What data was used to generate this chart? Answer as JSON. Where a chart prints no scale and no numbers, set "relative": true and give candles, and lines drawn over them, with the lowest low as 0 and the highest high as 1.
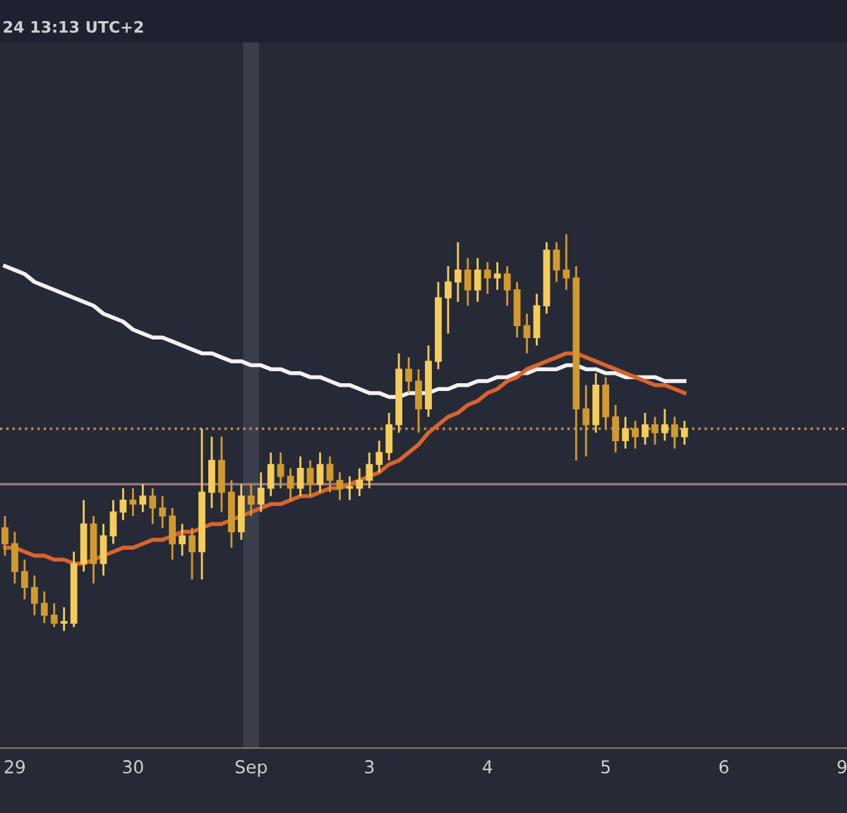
{
  "chart_data": {
    "type": "candlestick",
    "relative": true,
    "annotations": [
      "24 13:13 UTC+2"
    ],
    "categories": [
      null,
      "29",
      null,
      null,
      null,
      null,
      null,
      null,
      null,
      null,
      null,
      null,
      null,
      "30",
      null,
      null,
      null,
      null,
      null,
      null,
      null,
      null,
      null,
      null,
      null,
      "Sep",
      null,
      null,
      null,
      null,
      null,
      null,
      null,
      null,
      null,
      null,
      null,
      "3",
      null,
      null,
      null,
      null,
      null,
      null,
      null,
      null,
      null,
      null,
      null,
      "4",
      null,
      null,
      null,
      null,
      null,
      null,
      null,
      null,
      null,
      null,
      null,
      "5",
      null,
      null,
      null,
      null,
      null,
      null,
      null,
      null,
      null,
      null,
      null,
      "6",
      null,
      null,
      null,
      null,
      null,
      null,
      null,
      null,
      null,
      null,
      null,
      "9"
    ],
    "colors": [
      "#d29a2e",
      "#d29a2e",
      "#d29a2e",
      "#d29a2e",
      "#d29a2e",
      "#d29a2e",
      "#f5cc5a",
      "#f5cc5a",
      "#f5cc5a",
      "#d29a2e",
      "#f5cc5a",
      "#f5cc5a",
      "#f5cc5a",
      "#d29a2e",
      "#f5cc5a",
      "#d29a2e",
      "#d29a2e",
      "#d29a2e",
      "#f5cc5a",
      "#d29a2e",
      "#f5cc5a",
      "#f5cc5a",
      "#d29a2e",
      "#d29a2e",
      "#f5cc5a",
      "#d29a2e",
      "#f5cc5a",
      "#f5cc5a",
      "#d29a2e",
      "#d29a2e",
      "#f5cc5a",
      "#d29a2e",
      "#f5cc5a",
      "#d29a2e",
      "#d29a2e",
      "#f5cc5a",
      "#f5cc5a",
      "#f5cc5a",
      "#f5cc5a",
      "#f5cc5a",
      "#f5cc5a",
      "#d29a2e",
      "#d29a2e",
      "#f5cc5a",
      "#f5cc5a",
      "#f5cc5a",
      "#f5cc5a",
      "#d29a2e",
      "#f5cc5a",
      "#d29a2e",
      "#f5cc5a",
      "#d29a2e",
      "#d29a2e",
      "#d29a2e",
      "#f5cc5a",
      "#f5cc5a",
      "#d29a2e",
      "#d29a2e",
      "#d29a2e",
      "#d29a2e",
      "#f5cc5a",
      "#d29a2e",
      "#d29a2e",
      "#f5cc5a",
      "#d29a2e",
      "#f5cc5a",
      "#d29a2e",
      "#f5cc5a",
      "#d29a2e",
      "#f5cc5a",
      null,
      null,
      null,
      null,
      null,
      null,
      null,
      null,
      null,
      null,
      null,
      null,
      null,
      null,
      null,
      null
    ],
    "ohlc": [
      [
        0.26,
        0.29,
        0.19,
        0.22
      ],
      [
        0.22,
        0.25,
        0.12,
        0.15
      ],
      [
        0.15,
        0.18,
        0.08,
        0.11
      ],
      [
        0.11,
        0.14,
        0.04,
        0.07
      ],
      [
        0.07,
        0.1,
        0.02,
        0.04
      ],
      [
        0.04,
        0.07,
        0.01,
        0.02
      ],
      [
        0.02,
        0.06,
        0.0,
        0.02
      ],
      [
        0.02,
        0.2,
        0.01,
        0.17
      ],
      [
        0.17,
        0.33,
        0.15,
        0.27
      ],
      [
        0.27,
        0.29,
        0.12,
        0.17
      ],
      [
        0.17,
        0.27,
        0.14,
        0.24
      ],
      [
        0.24,
        0.33,
        0.22,
        0.3
      ],
      [
        0.3,
        0.36,
        0.28,
        0.33
      ],
      [
        0.33,
        0.36,
        0.29,
        0.32
      ],
      [
        0.32,
        0.37,
        0.3,
        0.34
      ],
      [
        0.34,
        0.36,
        0.27,
        0.31
      ],
      [
        0.31,
        0.34,
        0.26,
        0.29
      ],
      [
        0.29,
        0.31,
        0.18,
        0.22
      ],
      [
        0.22,
        0.27,
        0.19,
        0.24
      ],
      [
        0.24,
        0.26,
        0.13,
        0.2
      ],
      [
        0.2,
        0.51,
        0.13,
        0.35
      ],
      [
        0.35,
        0.49,
        0.31,
        0.43
      ],
      [
        0.43,
        0.49,
        0.3,
        0.35
      ],
      [
        0.35,
        0.38,
        0.21,
        0.25
      ],
      [
        0.25,
        0.37,
        0.23,
        0.34
      ],
      [
        0.34,
        0.37,
        0.29,
        0.32
      ],
      [
        0.32,
        0.4,
        0.3,
        0.36
      ],
      [
        0.36,
        0.45,
        0.34,
        0.42
      ],
      [
        0.42,
        0.45,
        0.36,
        0.39
      ],
      [
        0.39,
        0.41,
        0.33,
        0.36
      ],
      [
        0.36,
        0.44,
        0.34,
        0.41
      ],
      [
        0.41,
        0.43,
        0.34,
        0.37
      ],
      [
        0.37,
        0.45,
        0.35,
        0.42
      ],
      [
        0.42,
        0.44,
        0.35,
        0.38
      ],
      [
        0.38,
        0.4,
        0.33,
        0.36
      ],
      [
        0.36,
        0.39,
        0.33,
        0.36
      ],
      [
        0.36,
        0.41,
        0.34,
        0.38
      ],
      [
        0.38,
        0.45,
        0.36,
        0.42
      ],
      [
        0.42,
        0.48,
        0.4,
        0.45
      ],
      [
        0.45,
        0.55,
        0.43,
        0.52
      ],
      [
        0.52,
        0.7,
        0.5,
        0.66
      ],
      [
        0.66,
        0.69,
        0.6,
        0.63
      ],
      [
        0.63,
        0.66,
        0.5,
        0.56
      ],
      [
        0.56,
        0.72,
        0.54,
        0.68
      ],
      [
        0.68,
        0.88,
        0.66,
        0.84
      ],
      [
        0.84,
        0.92,
        0.75,
        0.88
      ],
      [
        0.88,
        0.98,
        0.83,
        0.91
      ],
      [
        0.91,
        0.94,
        0.82,
        0.86
      ],
      [
        0.86,
        0.94,
        0.83,
        0.91
      ],
      [
        0.91,
        0.93,
        0.85,
        0.89
      ],
      [
        0.89,
        0.93,
        0.86,
        0.9
      ],
      [
        0.9,
        0.92,
        0.82,
        0.86
      ],
      [
        0.86,
        0.88,
        0.74,
        0.77
      ],
      [
        0.77,
        0.8,
        0.7,
        0.74
      ],
      [
        0.74,
        0.85,
        0.72,
        0.82
      ],
      [
        0.82,
        0.98,
        0.8,
        0.96
      ],
      [
        0.96,
        0.98,
        0.88,
        0.91
      ],
      [
        0.91,
        1.0,
        0.86,
        0.89
      ],
      [
        0.89,
        0.92,
        0.43,
        0.56
      ],
      [
        0.56,
        0.62,
        0.44,
        0.52
      ],
      [
        0.52,
        0.65,
        0.5,
        0.62
      ],
      [
        0.62,
        0.64,
        0.51,
        0.54
      ],
      [
        0.54,
        0.57,
        0.45,
        0.48
      ],
      [
        0.48,
        0.54,
        0.46,
        0.51
      ],
      [
        0.51,
        0.53,
        0.46,
        0.49
      ],
      [
        0.49,
        0.55,
        0.47,
        0.52
      ],
      [
        0.52,
        0.54,
        0.47,
        0.5
      ],
      [
        0.5,
        0.56,
        0.48,
        0.52
      ],
      [
        0.52,
        0.54,
        0.46,
        0.49
      ],
      [
        0.49,
        0.53,
        0.47,
        0.51
      ],
      null,
      null,
      null,
      null,
      null,
      null,
      null,
      null,
      null,
      null,
      null,
      null,
      null,
      null,
      null,
      null
    ],
    "series": [
      {
        "type": "line",
        "color": "#f2f2f2",
        "values": [
          0.92,
          0.91,
          0.9,
          0.88,
          0.87,
          0.86,
          0.85,
          0.84,
          0.83,
          0.82,
          0.8,
          0.79,
          0.78,
          0.76,
          0.75,
          0.74,
          0.74,
          0.73,
          0.72,
          0.71,
          0.7,
          0.7,
          0.69,
          0.68,
          0.68,
          0.67,
          0.67,
          0.66,
          0.66,
          0.65,
          0.65,
          0.64,
          0.64,
          0.63,
          0.62,
          0.62,
          0.61,
          0.6,
          0.6,
          0.59,
          0.59,
          0.6,
          0.6,
          0.6,
          0.61,
          0.61,
          0.62,
          0.62,
          0.63,
          0.63,
          0.64,
          0.64,
          0.65,
          0.65,
          0.66,
          0.66,
          0.66,
          0.67,
          0.67,
          0.66,
          0.66,
          0.65,
          0.65,
          0.64,
          0.64,
          0.64,
          0.64,
          0.63,
          0.63,
          0.63,
          null,
          null,
          null,
          null,
          null,
          null,
          null,
          null,
          null,
          null,
          null,
          null,
          null,
          null,
          null,
          null
        ]
      },
      {
        "type": "line",
        "color": "#d9642e",
        "values": [
          0.21,
          0.21,
          0.2,
          0.19,
          0.19,
          0.18,
          0.18,
          0.17,
          0.17,
          0.18,
          0.19,
          0.2,
          0.21,
          0.21,
          0.22,
          0.23,
          0.23,
          0.24,
          0.25,
          0.25,
          0.26,
          0.27,
          0.27,
          0.28,
          0.29,
          0.3,
          0.31,
          0.32,
          0.32,
          0.33,
          0.34,
          0.34,
          0.35,
          0.36,
          0.36,
          0.37,
          0.38,
          0.39,
          0.4,
          0.42,
          0.43,
          0.45,
          0.47,
          0.5,
          0.52,
          0.54,
          0.55,
          0.57,
          0.58,
          0.6,
          0.61,
          0.63,
          0.64,
          0.66,
          0.67,
          0.68,
          0.69,
          0.7,
          0.7,
          0.69,
          0.68,
          0.67,
          0.66,
          0.65,
          0.64,
          0.63,
          0.62,
          0.62,
          0.61,
          0.6,
          null,
          null,
          null,
          null,
          null,
          null,
          null,
          null,
          null,
          null,
          null,
          null,
          null,
          null,
          null,
          null
        ]
      }
    ],
    "ref_lines": [
      {
        "axis": "y",
        "value": 0.51,
        "color": "#c98a4b",
        "line_style": "dotted"
      },
      {
        "axis": "y",
        "value": 0.37,
        "color": "#9a7a80",
        "line_style": "solid"
      }
    ],
    "bands": [
      {
        "axis": "x",
        "from": "Sep",
        "to": "Sep",
        "color": "#3a3e4b"
      }
    ]
  }
}
